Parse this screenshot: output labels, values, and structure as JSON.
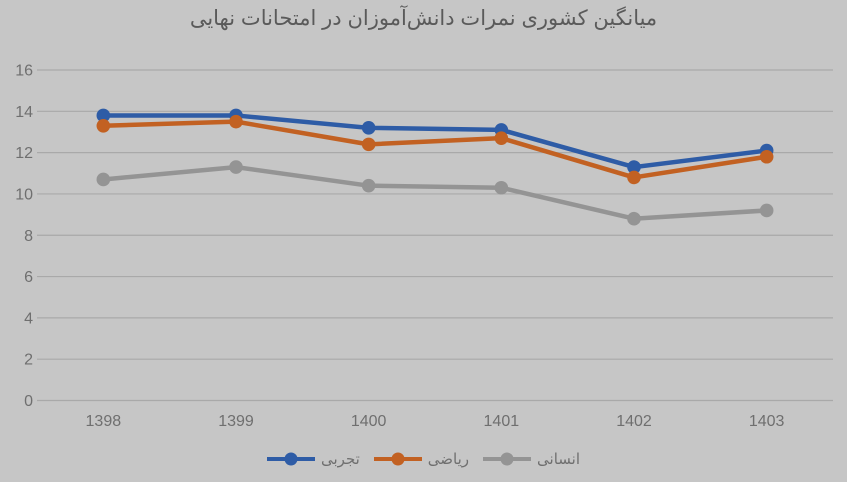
{
  "title": "میانگین کشوری نمرات دانش‌آموزان در امتحانات نهایی",
  "colors": {
    "background": "#c6c6c6",
    "gridline": "#a9a9a9",
    "axis_text": "#6f6f6f",
    "title_text": "#5a5a5a",
    "series_blue": "#2e5ca6",
    "series_orange": "#c26122",
    "series_gray": "#949494"
  },
  "chart_data": {
    "type": "line",
    "title": "میانگین کشوری نمرات دانش‌آموزان در امتحانات نهایی",
    "categories": [
      "1398",
      "1399",
      "1400",
      "1401",
      "1402",
      "1403"
    ],
    "series": [
      {
        "name": "تجربی",
        "color": "#2e5ca6",
        "values": [
          13.8,
          13.8,
          13.2,
          13.1,
          11.3,
          12.1
        ]
      },
      {
        "name": "ریاضی",
        "color": "#c26122",
        "values": [
          13.3,
          13.5,
          12.4,
          12.7,
          10.8,
          11.8
        ]
      },
      {
        "name": "انسانی",
        "color": "#949494",
        "values": [
          10.7,
          11.3,
          10.4,
          10.3,
          8.8,
          9.2
        ]
      }
    ],
    "xlabel": "",
    "ylabel": "",
    "ylim": [
      0,
      16
    ],
    "ytick_step": 2,
    "yticks": [
      0,
      2,
      4,
      6,
      8,
      10,
      12,
      14,
      16
    ],
    "grid": true,
    "marker": "circle",
    "legend_position": "bottom"
  }
}
